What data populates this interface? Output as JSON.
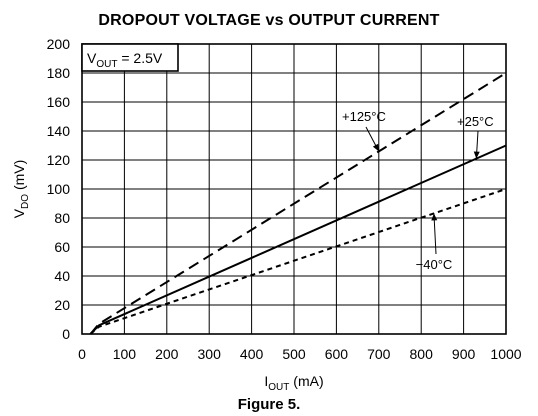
{
  "chart_title": "DROPOUT VOLTAGE vs OUTPUT CURRENT",
  "figure_caption": "Figure 5.",
  "chart_data": {
    "type": "line",
    "title": "DROPOUT VOLTAGE vs OUTPUT CURRENT",
    "xlabel": {
      "main": "I",
      "sub": "OUT",
      "unit": " (mA)"
    },
    "ylabel": {
      "main": "V",
      "sub": "DO",
      "unit": " (mV)"
    },
    "xlim": [
      0,
      1000
    ],
    "ylim": [
      0,
      200
    ],
    "x_ticks": [
      0,
      100,
      200,
      300,
      400,
      500,
      600,
      700,
      800,
      900,
      1000
    ],
    "y_ticks": [
      0,
      20,
      40,
      60,
      80,
      100,
      120,
      140,
      160,
      180,
      200
    ],
    "grid": true,
    "condition": {
      "main": "V",
      "sub": "OUT",
      "rest": " = 2.5V"
    },
    "series": [
      {
        "name": "+125°C",
        "style": "long-dash",
        "x": [
          20,
          40,
          1000
        ],
        "y": [
          0,
          7,
          180
        ]
      },
      {
        "name": "+25°C",
        "style": "solid",
        "x": [
          20,
          40,
          1000
        ],
        "y": [
          0,
          6,
          130
        ]
      },
      {
        "name": "−40°C",
        "style": "short-dash",
        "x": [
          20,
          40,
          1000
        ],
        "y": [
          0,
          5,
          100
        ]
      }
    ],
    "annotations": [
      {
        "text": "+125°C",
        "series": 0
      },
      {
        "text": "+25°C",
        "series": 1
      },
      {
        "text": "−40°C",
        "series": 2
      }
    ]
  }
}
